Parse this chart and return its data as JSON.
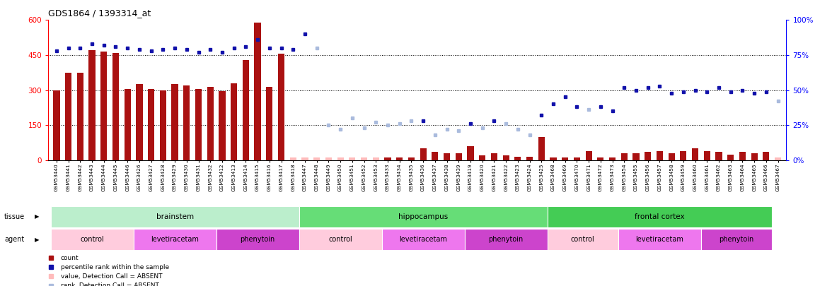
{
  "title": "GDS1864 / 1393314_at",
  "samples": [
    "GSM53440",
    "GSM53441",
    "GSM53442",
    "GSM53443",
    "GSM53444",
    "GSM53445",
    "GSM53446",
    "GSM53426",
    "GSM53427",
    "GSM53428",
    "GSM53429",
    "GSM53430",
    "GSM53431",
    "GSM53432",
    "GSM53412",
    "GSM53413",
    "GSM53414",
    "GSM53415",
    "GSM53416",
    "GSM53417",
    "GSM53418",
    "GSM53447",
    "GSM53448",
    "GSM53449",
    "GSM53450",
    "GSM53451",
    "GSM53452",
    "GSM53453",
    "GSM53433",
    "GSM53434",
    "GSM53435",
    "GSM53436",
    "GSM53437",
    "GSM53438",
    "GSM53439",
    "GSM53419",
    "GSM53420",
    "GSM53421",
    "GSM53422",
    "GSM53423",
    "GSM53424",
    "GSM53425",
    "GSM53468",
    "GSM53469",
    "GSM53470",
    "GSM53471",
    "GSM53472",
    "GSM53473",
    "GSM53454",
    "GSM53455",
    "GSM53456",
    "GSM53457",
    "GSM53458",
    "GSM53459",
    "GSM53460",
    "GSM53461",
    "GSM53462",
    "GSM53463",
    "GSM53464",
    "GSM53465",
    "GSM53466",
    "GSM53467"
  ],
  "bar_values": [
    300,
    375,
    375,
    470,
    465,
    460,
    305,
    325,
    305,
    300,
    325,
    320,
    305,
    315,
    295,
    330,
    430,
    590,
    315,
    455,
    10,
    10,
    10,
    10,
    10,
    10,
    10,
    10,
    10,
    10,
    10,
    50,
    35,
    30,
    30,
    60,
    20,
    30,
    20,
    15,
    15,
    100,
    10,
    10,
    10,
    40,
    10,
    10,
    30,
    30,
    35,
    40,
    30,
    40,
    50,
    40,
    35,
    25,
    35,
    30,
    35,
    10
  ],
  "bar_absent": [
    false,
    false,
    false,
    false,
    false,
    false,
    false,
    false,
    false,
    false,
    false,
    false,
    false,
    false,
    false,
    false,
    false,
    false,
    false,
    false,
    true,
    true,
    true,
    true,
    true,
    true,
    true,
    true,
    false,
    false,
    false,
    false,
    false,
    false,
    false,
    false,
    false,
    false,
    false,
    false,
    false,
    false,
    false,
    false,
    false,
    false,
    false,
    false,
    false,
    false,
    false,
    false,
    false,
    false,
    false,
    false,
    false,
    false,
    false,
    false,
    false,
    true
  ],
  "rank_values": [
    78,
    80,
    80,
    83,
    82,
    81,
    80,
    79,
    78,
    79,
    80,
    79,
    77,
    79,
    77,
    80,
    81,
    86,
    80,
    80,
    79,
    90,
    80,
    25,
    22,
    30,
    23,
    27,
    25,
    26,
    28,
    28,
    18,
    22,
    21,
    26,
    23,
    28,
    26,
    22,
    18,
    32,
    40,
    45,
    38,
    36,
    38,
    35,
    52,
    50,
    52,
    53,
    48,
    49,
    50,
    49,
    52,
    49,
    50,
    48,
    49,
    42
  ],
  "rank_absent": [
    false,
    false,
    false,
    false,
    false,
    false,
    false,
    false,
    false,
    false,
    false,
    false,
    false,
    false,
    false,
    false,
    false,
    false,
    false,
    false,
    false,
    false,
    true,
    true,
    true,
    true,
    true,
    true,
    true,
    true,
    true,
    false,
    true,
    true,
    true,
    false,
    true,
    false,
    true,
    true,
    true,
    false,
    false,
    false,
    false,
    true,
    false,
    false,
    false,
    false,
    false,
    false,
    false,
    false,
    false,
    false,
    false,
    false,
    false,
    false,
    false,
    true
  ],
  "tissue_groups": [
    {
      "label": "brainstem",
      "start": 0,
      "end": 20,
      "color": "#BBEECC"
    },
    {
      "label": "hippocampus",
      "start": 21,
      "end": 41,
      "color": "#66DD77"
    },
    {
      "label": "frontal cortex",
      "start": 42,
      "end": 60,
      "color": "#44CC55"
    }
  ],
  "agent_groups": [
    {
      "label": "control",
      "start": 0,
      "end": 6,
      "color": "#FFCCDD"
    },
    {
      "label": "levetiracetam",
      "start": 7,
      "end": 13,
      "color": "#EE77EE"
    },
    {
      "label": "phenytoin",
      "start": 14,
      "end": 20,
      "color": "#CC44CC"
    },
    {
      "label": "control",
      "start": 21,
      "end": 27,
      "color": "#FFCCDD"
    },
    {
      "label": "levetiracetam",
      "start": 28,
      "end": 34,
      "color": "#EE77EE"
    },
    {
      "label": "phenytoin",
      "start": 35,
      "end": 41,
      "color": "#CC44CC"
    },
    {
      "label": "control",
      "start": 42,
      "end": 47,
      "color": "#FFCCDD"
    },
    {
      "label": "levetiracetam",
      "start": 48,
      "end": 54,
      "color": "#EE77EE"
    },
    {
      "label": "phenytoin",
      "start": 55,
      "end": 60,
      "color": "#CC44CC"
    }
  ],
  "ylim_left": [
    0,
    600
  ],
  "ylim_right": [
    0,
    100
  ],
  "yticks_left": [
    0,
    150,
    300,
    450,
    600
  ],
  "yticks_right": [
    0,
    25,
    50,
    75,
    100
  ],
  "bar_color_present": "#AA1111",
  "bar_color_absent": "#FFBBBB",
  "rank_color_present": "#1111AA",
  "rank_color_absent": "#AABBDD",
  "background_color": "#ffffff"
}
